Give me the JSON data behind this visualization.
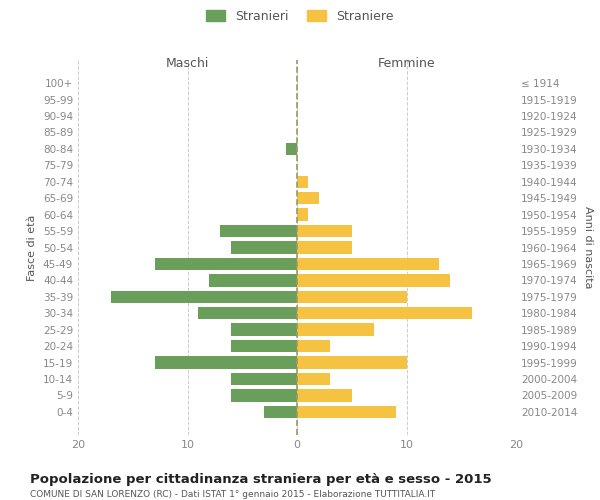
{
  "age_groups": [
    "100+",
    "95-99",
    "90-94",
    "85-89",
    "80-84",
    "75-79",
    "70-74",
    "65-69",
    "60-64",
    "55-59",
    "50-54",
    "45-49",
    "40-44",
    "35-39",
    "30-34",
    "25-29",
    "20-24",
    "15-19",
    "10-14",
    "5-9",
    "0-4"
  ],
  "birth_years": [
    "≤ 1914",
    "1915-1919",
    "1920-1924",
    "1925-1929",
    "1930-1934",
    "1935-1939",
    "1940-1944",
    "1945-1949",
    "1950-1954",
    "1955-1959",
    "1960-1964",
    "1965-1969",
    "1970-1974",
    "1975-1979",
    "1980-1984",
    "1985-1989",
    "1990-1994",
    "1995-1999",
    "2000-2004",
    "2005-2009",
    "2010-2014"
  ],
  "maschi": [
    0,
    0,
    0,
    0,
    1,
    0,
    0,
    0,
    0,
    7,
    6,
    13,
    8,
    17,
    9,
    6,
    6,
    13,
    6,
    6,
    3
  ],
  "femmine": [
    0,
    0,
    0,
    0,
    0,
    0,
    1,
    2,
    1,
    5,
    5,
    13,
    14,
    10,
    16,
    7,
    3,
    10,
    3,
    5,
    9
  ],
  "male_color": "#6a9e5b",
  "female_color": "#f5c242",
  "background_color": "#ffffff",
  "grid_color": "#cccccc",
  "title": "Popolazione per cittadinanza straniera per età e sesso - 2015",
  "subtitle": "COMUNE DI SAN LORENZO (RC) - Dati ISTAT 1° gennaio 2015 - Elaborazione TUTTITALIA.IT",
  "xlabel_left": "Maschi",
  "xlabel_right": "Femmine",
  "ylabel_left": "Fasce di età",
  "ylabel_right": "Anni di nascita",
  "legend_male": "Stranieri",
  "legend_female": "Straniere",
  "xlim": 20
}
